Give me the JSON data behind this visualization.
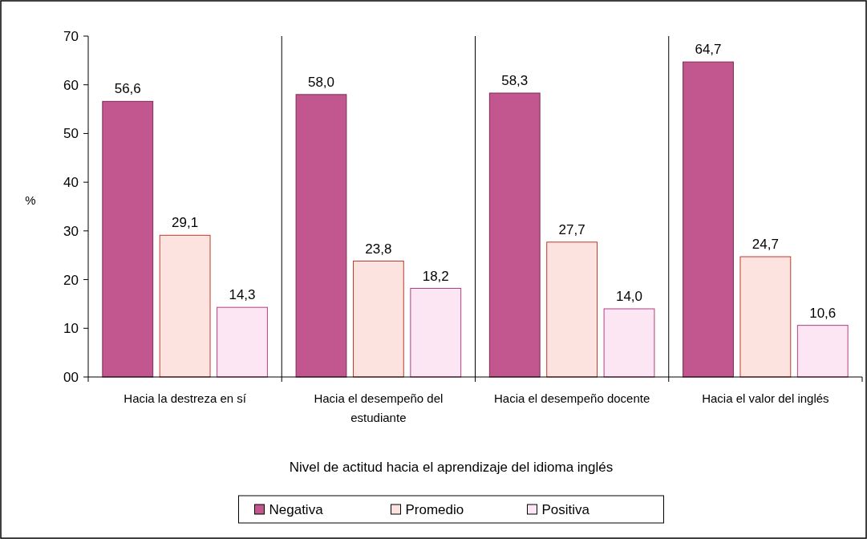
{
  "chart_data": {
    "type": "bar",
    "xlabel": "Nivel de actitud hacia el aprendizaje del idioma inglés",
    "ylabel": "%",
    "categories": [
      "Hacia la destreza en sí",
      "Hacia el desempeño del estudiante",
      "Hacia el desempeño docente",
      "Hacia el valor del inglés"
    ],
    "series": [
      {
        "name": "Negativa",
        "color": "#c2568e",
        "values": [
          56.6,
          58.0,
          58.3,
          64.7
        ],
        "value_labels": [
          "56,6",
          "58,0",
          "58,3",
          "64,7"
        ]
      },
      {
        "name": "Promedio",
        "color": "#fde3df",
        "values": [
          29.1,
          23.8,
          27.7,
          24.7
        ],
        "value_labels": [
          "29,1",
          "23,8",
          "27,7",
          "24,7"
        ]
      },
      {
        "name": "Positiva",
        "color": "#fde6f4",
        "values": [
          14.3,
          18.2,
          14.0,
          10.6
        ],
        "value_labels": [
          "14,3",
          "18,2",
          "14,0",
          "10,6"
        ]
      }
    ],
    "ylim": [
      0,
      70
    ],
    "yticks": [
      {
        "value": 0,
        "label": "00"
      },
      10,
      20,
      30,
      40,
      50,
      60,
      70
    ],
    "grid": "x",
    "legend": "bottom"
  }
}
